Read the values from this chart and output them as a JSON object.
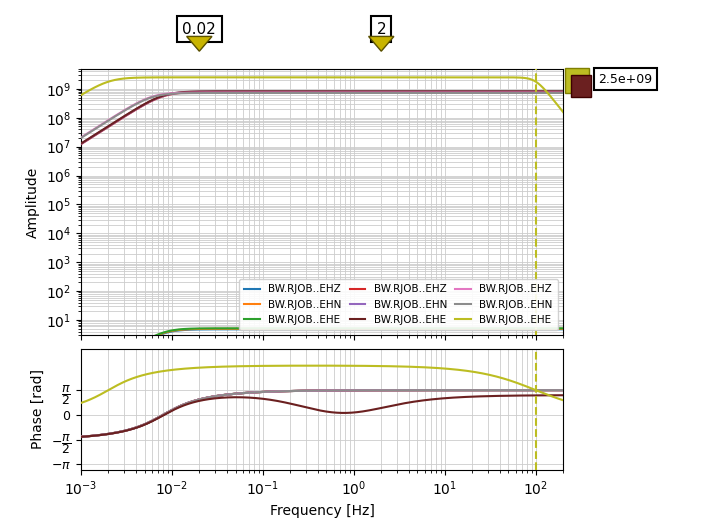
{
  "freq_min": 0.001,
  "freq_max": 200,
  "xlabel": "Frequency [Hz]",
  "ylabel_amp": "Amplitude",
  "ylabel_phase": "Phase [rad]",
  "vline_freq": 100,
  "marker1_freq": 0.02,
  "marker2_freq": 2,
  "marker1_label": "0.02",
  "marker2_label": "2",
  "right_label": "2.5e+09",
  "amp_ylim_low": 3,
  "amp_ylim_high": 5000000000.0,
  "phase_ylim_low": -3.5,
  "phase_ylim_high": 4.2,
  "colors": {
    "EHZ_blue": "#1f77b4",
    "EHN_orange": "#ff7f0e",
    "EHE_green": "#2ca02c",
    "EHZ_red": "#d62728",
    "EHN_purple": "#9467bd",
    "EHE_brown": "#6b2020",
    "EHZ_pink": "#e377c2",
    "EHN_gray": "#8c8c8c",
    "EHE_yellow": "#bcbd22"
  },
  "legend_labels": [
    "BW.RJOB..EHZ",
    "BW.RJOB..EHN",
    "BW.RJOB..EHE",
    "BW.RJOB..EHZ",
    "BW.RJOB..EHN",
    "BW.RJOB..EHE",
    "BW.RJOB..EHZ",
    "BW.RJOB..EHN",
    "BW.RJOB..EHE"
  ]
}
